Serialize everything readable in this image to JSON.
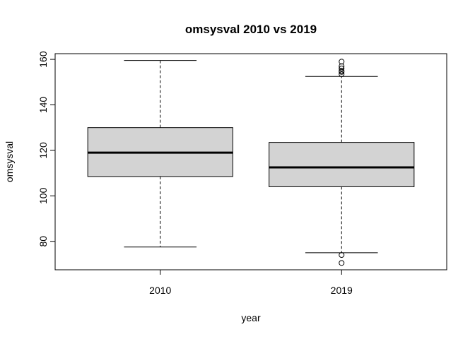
{
  "chart_data": {
    "type": "boxplot",
    "title": "omsysval 2010 vs 2019",
    "xlabel": "year",
    "ylabel": "omsysval",
    "categories": [
      "2010",
      "2019"
    ],
    "ylim": [
      67.5,
      162.5
    ],
    "yticks": [
      80,
      100,
      120,
      140,
      160
    ],
    "grid": false,
    "boxes": [
      {
        "category": "2010",
        "whisker_low": 77.5,
        "q1": 108.5,
        "median": 119,
        "q3": 130,
        "whisker_high": 159.5,
        "outliers": []
      },
      {
        "category": "2019",
        "whisker_low": 75,
        "q1": 104,
        "median": 112.5,
        "q3": 123.5,
        "whisker_high": 152.5,
        "outliers": [
          70.5,
          74,
          153.5,
          154.5,
          155,
          156,
          157,
          159
        ]
      }
    ],
    "colors": {
      "box_fill": "#d3d3d3",
      "stroke": "#000000"
    }
  }
}
